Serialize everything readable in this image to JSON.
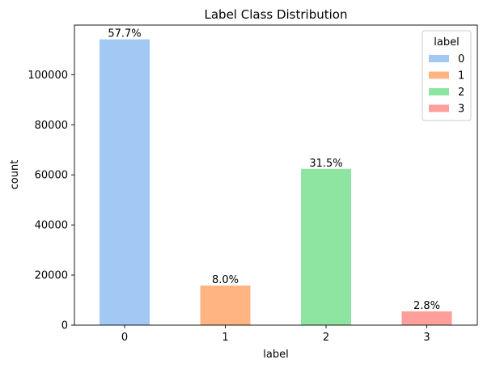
{
  "chart_data": {
    "type": "bar",
    "title": "Label Class Distribution",
    "xlabel": "label",
    "ylabel": "count",
    "categories": [
      "0",
      "1",
      "2",
      "3"
    ],
    "values": [
      114100,
      15800,
      62400,
      5500
    ],
    "data_labels": [
      "57.7%",
      "8.0%",
      "31.5%",
      "2.8%"
    ],
    "colors": [
      "#a1c9f4",
      "#ffb482",
      "#8de5a1",
      "#ff9f9b"
    ],
    "ylim": [
      0,
      119800
    ],
    "yticks": [
      0,
      20000,
      40000,
      60000,
      80000,
      100000
    ],
    "grid": false,
    "legend": {
      "title": "label",
      "placement": "top-right",
      "entries": [
        "0",
        "1",
        "2",
        "3"
      ]
    }
  }
}
